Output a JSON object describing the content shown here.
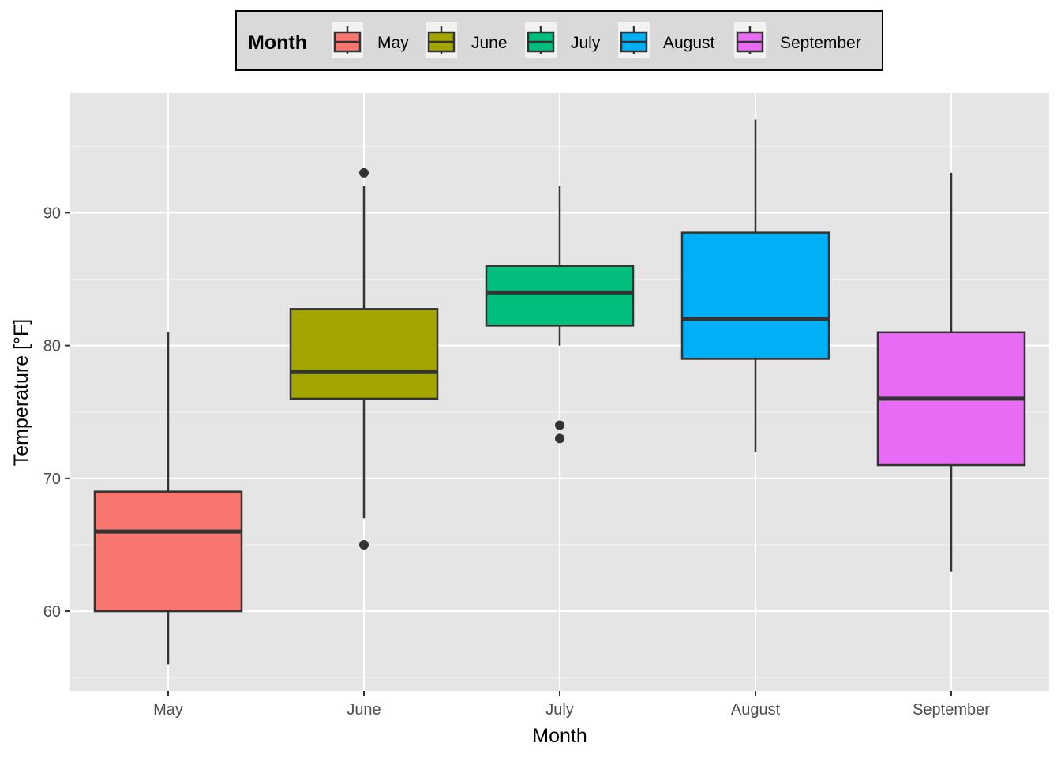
{
  "chart_data": {
    "type": "boxplot",
    "xlabel": "Month",
    "ylabel": "Temperature [°F]",
    "categories": [
      "May",
      "June",
      "July",
      "August",
      "September"
    ],
    "ylim": [
      54,
      99
    ],
    "yticks": [
      60,
      70,
      80,
      90
    ],
    "grid": true,
    "legend": {
      "title": "Month",
      "placement": "top",
      "entries": [
        "May",
        "June",
        "July",
        "August",
        "September"
      ]
    },
    "colors": [
      "#F8766D",
      "#A3A500",
      "#00BF7D",
      "#00B0F6",
      "#E76BF3"
    ],
    "boxes": [
      {
        "category": "May",
        "whisker_low": 56,
        "q1": 60,
        "median": 66,
        "q3": 69,
        "whisker_high": 81,
        "outliers": []
      },
      {
        "category": "June",
        "whisker_low": 67,
        "q1": 76,
        "median": 78,
        "q3": 82.75,
        "whisker_high": 92,
        "outliers": [
          65,
          93
        ]
      },
      {
        "category": "July",
        "whisker_low": 80,
        "q1": 81.5,
        "median": 84,
        "q3": 86,
        "whisker_high": 92,
        "outliers": [
          73,
          74
        ]
      },
      {
        "category": "August",
        "whisker_low": 72,
        "q1": 79,
        "median": 82,
        "q3": 88.5,
        "whisker_high": 97,
        "outliers": []
      },
      {
        "category": "September",
        "whisker_low": 63,
        "q1": 71,
        "median": 76,
        "q3": 81,
        "whisker_high": 93,
        "outliers": []
      }
    ]
  }
}
